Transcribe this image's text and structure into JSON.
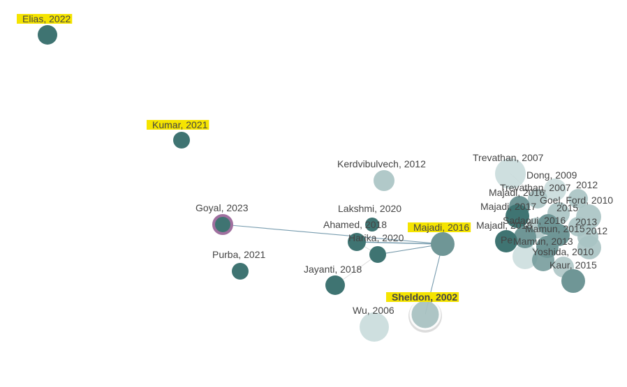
{
  "colors": {
    "node_dark": "#3f7472",
    "node_mid": "#6f9696",
    "node_light": "#a9c3c3",
    "node_pale": "#c9dcdc",
    "selected": "#a0709f",
    "highlight": "#f5e400",
    "edge": "#5f8aa0",
    "label": "#444444"
  },
  "nodes": [
    {
      "id": "elias-2022",
      "label": "Elias, 2022",
      "highlighted": true,
      "tone": "dark"
    },
    {
      "id": "kumar-2021",
      "label": "Kumar, 2021",
      "highlighted": true,
      "tone": "dark"
    },
    {
      "id": "goyal-2023",
      "label": "Goyal, 2023",
      "selected": true,
      "tone": "dark"
    },
    {
      "id": "purba-2021",
      "label": "Purba, 2021",
      "tone": "dark"
    },
    {
      "id": "kerdvibulvech-2012",
      "label": "Kerdvibulvech, 2012",
      "tone": "light"
    },
    {
      "id": "lakshmi-2020",
      "label": "Lakshmi, 2020",
      "tone": "dark"
    },
    {
      "id": "ahamed-2018",
      "label": "Ahamed, 2018",
      "tone": "dark"
    },
    {
      "id": "harika-2020",
      "label": "Harika, 2020",
      "tone": "dark"
    },
    {
      "id": "jayanti-2018",
      "label": "Jayanti, 2018",
      "tone": "dark"
    },
    {
      "id": "majadi-2016",
      "label": "Majadi, 2016",
      "highlighted": true,
      "tone": "mid"
    },
    {
      "id": "sheldon-2002",
      "label": "Sheldon, 2002",
      "highlighted": true,
      "focused": true,
      "tone": "light"
    },
    {
      "id": "wu-2006",
      "label": "Wu, 2006",
      "tone": "pale"
    },
    {
      "id": "trevathan-2007a",
      "label": "Trevathan, 2007",
      "tone": "pale"
    },
    {
      "id": "dong-2009",
      "label": "Dong, 2009",
      "tone": "pale"
    },
    {
      "id": "trevathan-2007b",
      "label": "Trevathan, 2007",
      "tone": "light"
    },
    {
      "id": "n-2012a",
      "label": "2012",
      "tone": "light"
    },
    {
      "id": "majadi-2016b",
      "label": "Majadi, 2016",
      "tone": "mid"
    },
    {
      "id": "goel-ford-2010",
      "label": "Goel, Ford, 2010",
      "tone": "light"
    },
    {
      "id": "majadi-2017",
      "label": "Majadi, 2017",
      "tone": "dark"
    },
    {
      "id": "n-2015a",
      "label": "2015",
      "tone": "light"
    },
    {
      "id": "sadaoui-2016",
      "label": "Sadaoui, 2016",
      "tone": "mid"
    },
    {
      "id": "n-2013a",
      "label": "2013",
      "tone": "light"
    },
    {
      "id": "majadi-2018",
      "label": "Majadi, 2018",
      "tone": "mid"
    },
    {
      "id": "mamun-2015",
      "label": "Mamun, 2015",
      "tone": "mid"
    },
    {
      "id": "n-2012b",
      "label": "2012",
      "tone": "light"
    },
    {
      "id": "pe-node",
      "label": "Pe",
      "tone": "dark"
    },
    {
      "id": "mamun-2013",
      "label": "Mamun, 2013",
      "tone": "mid"
    },
    {
      "id": "yoshida-2010",
      "label": "Yoshida, 2010",
      "tone": "light"
    },
    {
      "id": "kaur-2015",
      "label": "Kaur, 2015",
      "tone": "mid"
    }
  ],
  "edges": [
    {
      "source": "goyal-2023",
      "target": "majadi-2016"
    },
    {
      "source": "ahamed-2018",
      "target": "majadi-2016"
    },
    {
      "source": "majadi-2016",
      "target": "sheldon-2002"
    },
    {
      "source": "harika-2020",
      "target": "majadi-2016"
    }
  ]
}
